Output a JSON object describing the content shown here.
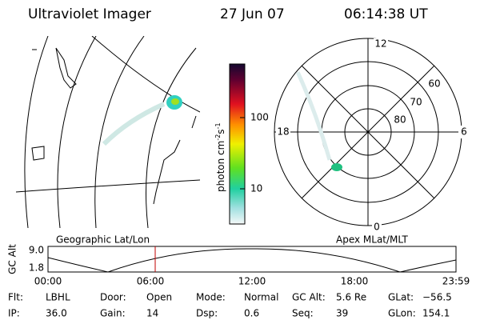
{
  "header": {
    "title": "Ultraviolet Imager",
    "date": "27 Jun 07",
    "time": "06:14:38 UT"
  },
  "colorbar": {
    "label": {
      "base": "photon cm",
      "exp1": "-2",
      "unit2": "s",
      "exp2": "-1"
    },
    "ticks": [
      "100",
      "10"
    ]
  },
  "polar": {
    "mlt_labels": [
      "12",
      "18",
      "6",
      "0"
    ],
    "mlat_labels": [
      "60",
      "70",
      "80"
    ]
  },
  "timeline": {
    "left_title": "Geographic Lat/Lon",
    "right_title": "Apex MLat/MLT",
    "y_label": "GC Alt",
    "y_ticks": [
      "9.0",
      "1.8"
    ],
    "x_ticks": [
      "00:00",
      "06:00",
      "12:00",
      "18:00",
      "23:59"
    ]
  },
  "info": [
    [
      {
        "label": "Flt:",
        "value": "LBHL"
      },
      {
        "label": "Door:",
        "value": "Open"
      },
      {
        "label": "Mode:",
        "value": "Normal"
      },
      {
        "label": "GC Alt:",
        "value": "5.6 Re"
      },
      {
        "label": "GLat:",
        "value": "−56.5"
      }
    ],
    [
      {
        "label": "IP:",
        "value": "36.0"
      },
      {
        "label": "Gain:",
        "value": "14"
      },
      {
        "label": "Dsp:",
        "value": "0.6"
      },
      {
        "label": "Seq:",
        "value": "39"
      },
      {
        "label": "GLon:",
        "value": "154.1"
      }
    ]
  ]
}
